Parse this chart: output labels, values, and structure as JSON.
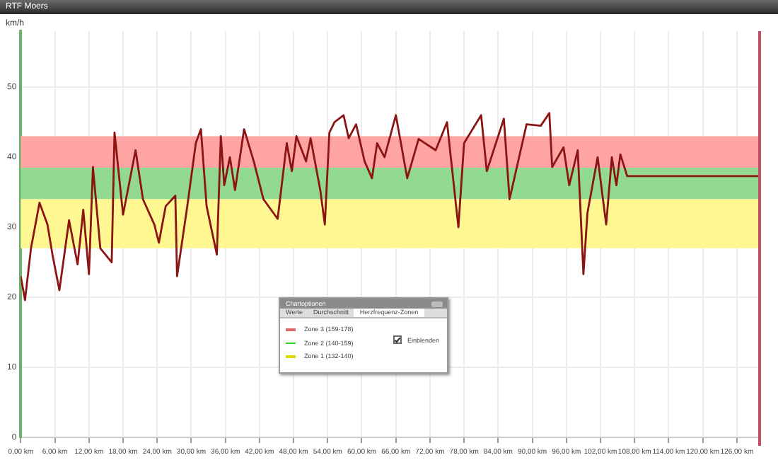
{
  "chart_data": {
    "type": "line",
    "title": "RTF Moers",
    "ylabel": "km/h",
    "x": [
      0,
      0.75,
      1.8,
      3.3,
      4.7,
      5.6,
      6.8,
      8.5,
      10,
      11,
      12,
      12.7,
      14,
      16,
      16.5,
      18,
      20.2,
      21.5,
      23.5,
      24.3,
      25.5,
      27.2,
      27.5,
      29.3,
      30.8,
      31.7,
      32.7,
      34.5,
      35.2,
      35.8,
      36.8,
      37.7,
      39.3,
      41,
      42.7,
      45.2,
      46.8,
      47.7,
      48.5,
      50.2,
      51,
      52.7,
      53.5,
      54.3,
      55.2,
      56.8,
      57.7,
      59,
      60.5,
      61.8,
      62.7,
      64,
      66,
      68,
      70,
      73,
      75,
      77,
      78,
      81,
      82,
      85,
      86,
      89,
      91.5,
      93,
      93.5,
      95.5,
      96.5,
      98,
      99,
      99.7,
      101.5,
      103,
      104,
      104.8,
      105.5,
      106.7,
      130
    ],
    "values": [
      23,
      19.6,
      27,
      33.5,
      30.4,
      26,
      21,
      31,
      24.7,
      32.5,
      23.3,
      38.6,
      27,
      25,
      43.5,
      31.8,
      41,
      34,
      30.4,
      27.8,
      33,
      34.5,
      23,
      33,
      42,
      44,
      33,
      26.1,
      43,
      36,
      40,
      35.3,
      44,
      39.4,
      34,
      31.2,
      42,
      38,
      43,
      39.4,
      42.7,
      35.3,
      30.4,
      43.5,
      45,
      46,
      42.7,
      44.7,
      39.4,
      37,
      42,
      40,
      46,
      37,
      42.6,
      41,
      45,
      30,
      42,
      46,
      38,
      45.5,
      34,
      44.7,
      44.5,
      46.3,
      38.6,
      41.4,
      36,
      41,
      23.3,
      32,
      40,
      30.4,
      40,
      36,
      40.4,
      37.3,
      37.3
    ],
    "color": "#8b1414",
    "xlim": [
      0,
      130
    ],
    "ylim": [
      0,
      58
    ],
    "xticks": [
      {
        "value": 0,
        "label": "0,00 km"
      },
      {
        "value": 6,
        "label": "6,00 km"
      },
      {
        "value": 12,
        "label": "12,00 km"
      },
      {
        "value": 18,
        "label": "18,00 km"
      },
      {
        "value": 24,
        "label": "24,00 km"
      },
      {
        "value": 30,
        "label": "30,00 km"
      },
      {
        "value": 36,
        "label": "36,00 km"
      },
      {
        "value": 42,
        "label": "42,00 km"
      },
      {
        "value": 48,
        "label": "48,00 km"
      },
      {
        "value": 54,
        "label": "54,00 km"
      },
      {
        "value": 60,
        "label": "60,00 km"
      },
      {
        "value": 66,
        "label": "66,00 km"
      },
      {
        "value": 72,
        "label": "72,00 km"
      },
      {
        "value": 78,
        "label": "78,00 km"
      },
      {
        "value": 84,
        "label": "84,00 km"
      },
      {
        "value": 90,
        "label": "90,00 km"
      },
      {
        "value": 96,
        "label": "96,00 km"
      },
      {
        "value": 102,
        "label": "102,00 km"
      },
      {
        "value": 108,
        "label": "108,00 km"
      },
      {
        "value": 114,
        "label": "114,00 km"
      },
      {
        "value": 120,
        "label": "120,00 km"
      },
      {
        "value": 126,
        "label": "126,00 km"
      }
    ],
    "yticks": [
      0,
      10,
      20,
      30,
      40,
      50
    ],
    "grid": true,
    "marker": "none",
    "line_style": "solid",
    "legend": "bottom",
    "bands": [
      {
        "axis": "y",
        "from": 38.5,
        "to": 43,
        "label": "Zone 3 (159-178)",
        "color": "#ffa3a3"
      },
      {
        "axis": "y",
        "from": 34,
        "to": 38.5,
        "label": "Zone 2 (140-159)",
        "color": "#92d992"
      },
      {
        "axis": "y",
        "from": 27,
        "to": 34,
        "label": "Zone 1 (132-140)",
        "color": "#fff791"
      }
    ],
    "ref_lines": [
      {
        "axis": "x",
        "value": 130,
        "color": "#c0506a"
      }
    ],
    "annotations": [
      "Chartoptionen",
      "Werte",
      "Durchschnitt",
      "Herzfrequenz-Zonen",
      "Einblenden"
    ]
  }
}
